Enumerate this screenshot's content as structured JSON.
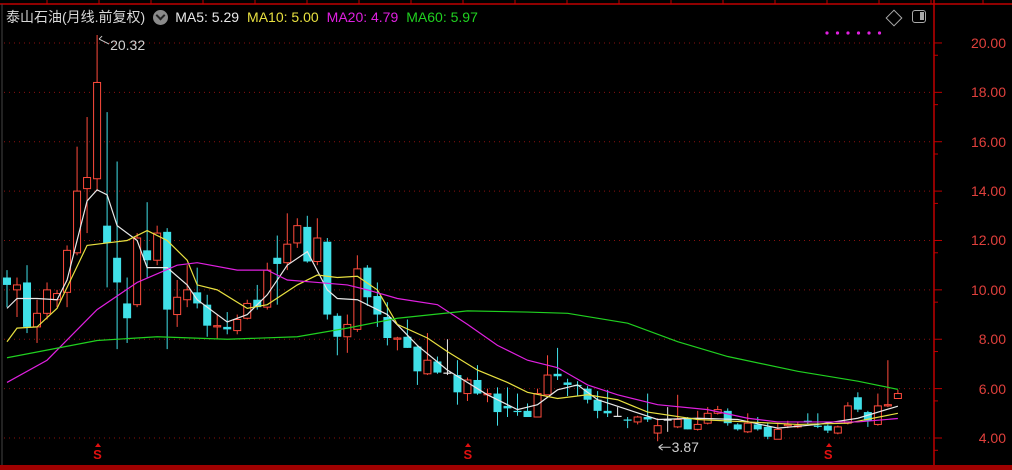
{
  "header": {
    "title": "泰山石油(月线.前复权)",
    "ma5_label": "MA5: 5.29",
    "ma10_label": "MA10: 5.00",
    "ma20_label": "MA20: 4.79",
    "ma60_label": "MA60: 5.97",
    "icons": [
      "dropdown-circle-icon",
      "diamond-icon",
      "panel-toggle-icon"
    ]
  },
  "colors": {
    "background": "#000000",
    "axis": "#c00000",
    "grid": "#8a1010",
    "up": "#ff4b3c",
    "down": "#40e0e8",
    "flat": "#e8e8e8",
    "ma5": "#e8e8e8",
    "ma10": "#e8e040",
    "ma20": "#e020e0",
    "ma60": "#20d020",
    "tick_text": "#e0403c"
  },
  "chart_data": {
    "type": "candlestick",
    "period": "monthly",
    "y_axis": {
      "min": 3.5,
      "max": 20.5,
      "ticks": [
        "20.00",
        "18.00",
        "16.00",
        "14.00",
        "12.00",
        "10.00",
        "8.00",
        "6.00",
        "4.00"
      ],
      "position": "right",
      "grid": "dotted"
    },
    "annotations": {
      "high": "20.32",
      "low": "3.87"
    },
    "high_index": 9,
    "low_index": 65,
    "marker_symbol": "S",
    "marker_indices": [
      9,
      46,
      82
    ],
    "ohlc": [
      [
        10.5,
        10.8,
        9.3,
        10.2
      ],
      [
        10.0,
        10.5,
        8.9,
        10.2
      ],
      [
        10.3,
        11.0,
        8.25,
        8.5
      ],
      [
        8.5,
        9.6,
        7.85,
        9.05
      ],
      [
        9.05,
        10.3,
        8.8,
        10.0
      ],
      [
        9.6,
        10.0,
        9.3,
        9.85
      ],
      [
        9.9,
        11.8,
        9.3,
        11.6
      ],
      [
        11.5,
        15.8,
        11.4,
        14.0
      ],
      [
        14.1,
        17.0,
        12.3,
        14.55
      ],
      [
        14.5,
        20.32,
        14.0,
        18.4
      ],
      [
        12.6,
        17.2,
        10.1,
        11.9
      ],
      [
        11.3,
        15.2,
        7.6,
        10.3
      ],
      [
        9.45,
        10.5,
        7.85,
        8.85
      ],
      [
        9.4,
        12.3,
        9.3,
        12.1
      ],
      [
        11.6,
        13.55,
        10.5,
        11.2
      ],
      [
        11.2,
        12.6,
        11.0,
        12.3
      ],
      [
        12.35,
        12.5,
        7.6,
        9.2
      ],
      [
        9.0,
        10.4,
        8.5,
        9.7
      ],
      [
        9.6,
        11.0,
        9.3,
        10.0
      ],
      [
        9.9,
        10.9,
        9.25,
        9.45
      ],
      [
        9.4,
        9.8,
        8.1,
        8.55
      ],
      [
        8.5,
        9.0,
        8.0,
        8.55
      ],
      [
        8.5,
        9.1,
        8.2,
        8.4
      ],
      [
        8.35,
        9.0,
        8.2,
        8.8
      ],
      [
        8.85,
        9.6,
        8.8,
        9.45
      ],
      [
        9.6,
        10.2,
        9.2,
        9.3
      ],
      [
        9.3,
        11.1,
        9.2,
        10.8
      ],
      [
        11.3,
        12.2,
        9.4,
        11.05
      ],
      [
        11.1,
        13.1,
        10.8,
        11.85
      ],
      [
        11.9,
        12.9,
        11.7,
        12.6
      ],
      [
        12.55,
        13.0,
        11.1,
        11.15
      ],
      [
        11.15,
        12.9,
        11.0,
        12.1
      ],
      [
        11.95,
        12.1,
        8.8,
        9.0
      ],
      [
        8.95,
        9.05,
        7.35,
        8.1
      ],
      [
        8.1,
        9.0,
        7.45,
        8.6
      ],
      [
        8.4,
        11.4,
        8.3,
        10.85
      ],
      [
        10.9,
        11.0,
        9.35,
        9.7
      ],
      [
        9.75,
        10.3,
        8.5,
        9.0
      ],
      [
        8.9,
        9.5,
        7.75,
        8.05
      ],
      [
        8.0,
        8.1,
        7.55,
        8.05
      ],
      [
        8.1,
        8.8,
        7.65,
        7.65
      ],
      [
        7.7,
        7.75,
        6.15,
        6.7
      ],
      [
        6.6,
        8.25,
        6.55,
        7.15
      ],
      [
        7.1,
        7.3,
        6.6,
        6.65
      ],
      [
        6.65,
        8.0,
        6.55,
        6.65
      ],
      [
        6.55,
        7.15,
        5.35,
        5.85
      ],
      [
        5.8,
        6.45,
        5.5,
        6.35
      ],
      [
        6.35,
        6.95,
        5.75,
        5.8
      ],
      [
        5.75,
        6.0,
        5.45,
        5.8
      ],
      [
        5.8,
        6.05,
        4.5,
        5.05
      ],
      [
        5.3,
        6.05,
        4.85,
        5.2
      ],
      [
        5.1,
        5.8,
        4.9,
        5.05
      ],
      [
        5.1,
        5.4,
        4.85,
        4.85
      ],
      [
        4.85,
        6.0,
        4.85,
        5.8
      ],
      [
        5.75,
        7.35,
        5.75,
        6.55
      ],
      [
        6.6,
        7.65,
        6.35,
        6.5
      ],
      [
        6.25,
        6.4,
        5.7,
        6.15
      ],
      [
        6.15,
        6.3,
        5.7,
        6.1
      ],
      [
        6.0,
        6.1,
        5.4,
        5.55
      ],
      [
        5.55,
        5.9,
        4.8,
        5.1
      ],
      [
        5.1,
        5.95,
        4.85,
        5.0
      ],
      [
        4.9,
        5.25,
        4.85,
        4.9
      ],
      [
        4.75,
        4.85,
        4.4,
        4.7
      ],
      [
        4.65,
        4.9,
        4.55,
        4.85
      ],
      [
        4.85,
        5.8,
        4.65,
        4.75
      ],
      [
        4.2,
        4.8,
        3.87,
        4.5
      ],
      [
        4.75,
        5.25,
        4.25,
        4.75
      ],
      [
        4.45,
        5.75,
        4.4,
        4.75
      ],
      [
        4.8,
        4.85,
        4.35,
        4.35
      ],
      [
        4.35,
        5.1,
        4.3,
        4.55
      ],
      [
        4.6,
        5.25,
        4.55,
        5.0
      ],
      [
        5.0,
        5.3,
        4.95,
        5.15
      ],
      [
        5.1,
        5.2,
        4.5,
        4.6
      ],
      [
        4.55,
        4.6,
        4.3,
        4.35
      ],
      [
        4.25,
        5.0,
        4.2,
        4.6
      ],
      [
        4.55,
        4.85,
        4.3,
        4.35
      ],
      [
        4.45,
        4.6,
        3.95,
        4.05
      ],
      [
        3.95,
        4.6,
        3.95,
        4.35
      ],
      [
        4.5,
        4.7,
        4.4,
        4.55
      ],
      [
        4.45,
        4.65,
        4.4,
        4.5
      ],
      [
        4.7,
        5.0,
        4.55,
        4.65
      ],
      [
        4.5,
        5.0,
        4.4,
        4.45
      ],
      [
        4.5,
        4.55,
        4.2,
        4.3
      ],
      [
        4.2,
        4.5,
        4.15,
        4.45
      ],
      [
        4.6,
        5.45,
        4.55,
        5.3
      ],
      [
        5.65,
        5.85,
        5.05,
        5.15
      ],
      [
        5.05,
        5.1,
        4.45,
        4.7
      ],
      [
        4.55,
        5.8,
        4.5,
        5.3
      ],
      [
        5.3,
        7.15,
        5.25,
        5.35
      ],
      [
        5.6,
        5.95,
        5.6,
        5.8
      ]
    ],
    "moving_averages": [
      {
        "name": "MA5",
        "color": "#e8e8e8",
        "points": [
          [
            0,
            9.25
          ],
          [
            1,
            9.65
          ],
          [
            3,
            9.65
          ],
          [
            5,
            9.6
          ],
          [
            6,
            10.4
          ],
          [
            8,
            13.6
          ],
          [
            9,
            14.05
          ],
          [
            10,
            13.85
          ],
          [
            11,
            12.6
          ],
          [
            13,
            12.0
          ],
          [
            14,
            10.9
          ],
          [
            16,
            10.9
          ],
          [
            18,
            10.2
          ],
          [
            19,
            9.6
          ],
          [
            22,
            8.7
          ],
          [
            24,
            9.0
          ],
          [
            26,
            9.8
          ],
          [
            28,
            11.0
          ],
          [
            30,
            11.55
          ],
          [
            32,
            10.0
          ],
          [
            33,
            9.65
          ],
          [
            35,
            9.6
          ],
          [
            38,
            9.0
          ],
          [
            41,
            7.75
          ],
          [
            44,
            6.75
          ],
          [
            48,
            5.75
          ],
          [
            51,
            5.15
          ],
          [
            53,
            5.35
          ],
          [
            55,
            5.95
          ],
          [
            57,
            6.15
          ],
          [
            59,
            5.55
          ],
          [
            62,
            5.15
          ],
          [
            65,
            4.75
          ],
          [
            69,
            4.8
          ],
          [
            73,
            4.75
          ],
          [
            77,
            4.4
          ],
          [
            81,
            4.55
          ],
          [
            85,
            4.8
          ],
          [
            89,
            5.29
          ]
        ]
      },
      {
        "name": "MA10",
        "color": "#e8e040",
        "points": [
          [
            0,
            7.9
          ],
          [
            1,
            8.45
          ],
          [
            3,
            8.5
          ],
          [
            5,
            9.25
          ],
          [
            8,
            11.8
          ],
          [
            10,
            11.9
          ],
          [
            12,
            12.0
          ],
          [
            14,
            12.4
          ],
          [
            16,
            12.0
          ],
          [
            18,
            11.2
          ],
          [
            19,
            10.2
          ],
          [
            21,
            10.0
          ],
          [
            24,
            9.25
          ],
          [
            26,
            9.4
          ],
          [
            29,
            10.2
          ],
          [
            31,
            10.6
          ],
          [
            33,
            10.5
          ],
          [
            35,
            10.55
          ],
          [
            37,
            10.0
          ],
          [
            39,
            8.6
          ],
          [
            42,
            8.05
          ],
          [
            44,
            7.5
          ],
          [
            47,
            6.75
          ],
          [
            50,
            6.25
          ],
          [
            52,
            5.85
          ],
          [
            55,
            5.6
          ],
          [
            58,
            5.75
          ],
          [
            61,
            5.55
          ],
          [
            64,
            5.05
          ],
          [
            69,
            4.75
          ],
          [
            74,
            4.65
          ],
          [
            79,
            4.55
          ],
          [
            84,
            4.6
          ],
          [
            89,
            5.0
          ]
        ]
      },
      {
        "name": "MA20",
        "color": "#e020e0",
        "points": [
          [
            0,
            6.25
          ],
          [
            4,
            7.15
          ],
          [
            9,
            9.2
          ],
          [
            13,
            10.3
          ],
          [
            17,
            11.0
          ],
          [
            19,
            11.1
          ],
          [
            23,
            10.8
          ],
          [
            26,
            10.8
          ],
          [
            28,
            10.4
          ],
          [
            31,
            10.3
          ],
          [
            34,
            10.2
          ],
          [
            36,
            10.0
          ],
          [
            39,
            9.65
          ],
          [
            43,
            9.4
          ],
          [
            46,
            8.6
          ],
          [
            49,
            7.75
          ],
          [
            52,
            7.15
          ],
          [
            55,
            6.85
          ],
          [
            58,
            6.15
          ],
          [
            61,
            5.75
          ],
          [
            65,
            5.35
          ],
          [
            70,
            5.15
          ],
          [
            74,
            4.8
          ],
          [
            77,
            4.65
          ],
          [
            81,
            4.65
          ],
          [
            85,
            4.65
          ],
          [
            89,
            4.79
          ]
        ]
      },
      {
        "name": "MA60",
        "color": "#20d020",
        "points": [
          [
            0,
            7.25
          ],
          [
            9,
            7.95
          ],
          [
            15,
            8.1
          ],
          [
            22,
            8.0
          ],
          [
            29,
            8.1
          ],
          [
            34,
            8.45
          ],
          [
            39,
            8.85
          ],
          [
            46,
            9.15
          ],
          [
            52,
            9.1
          ],
          [
            56,
            9.05
          ],
          [
            62,
            8.65
          ],
          [
            67,
            7.9
          ],
          [
            72,
            7.3
          ],
          [
            79,
            6.7
          ],
          [
            85,
            6.3
          ],
          [
            89,
            5.97
          ]
        ]
      }
    ]
  }
}
